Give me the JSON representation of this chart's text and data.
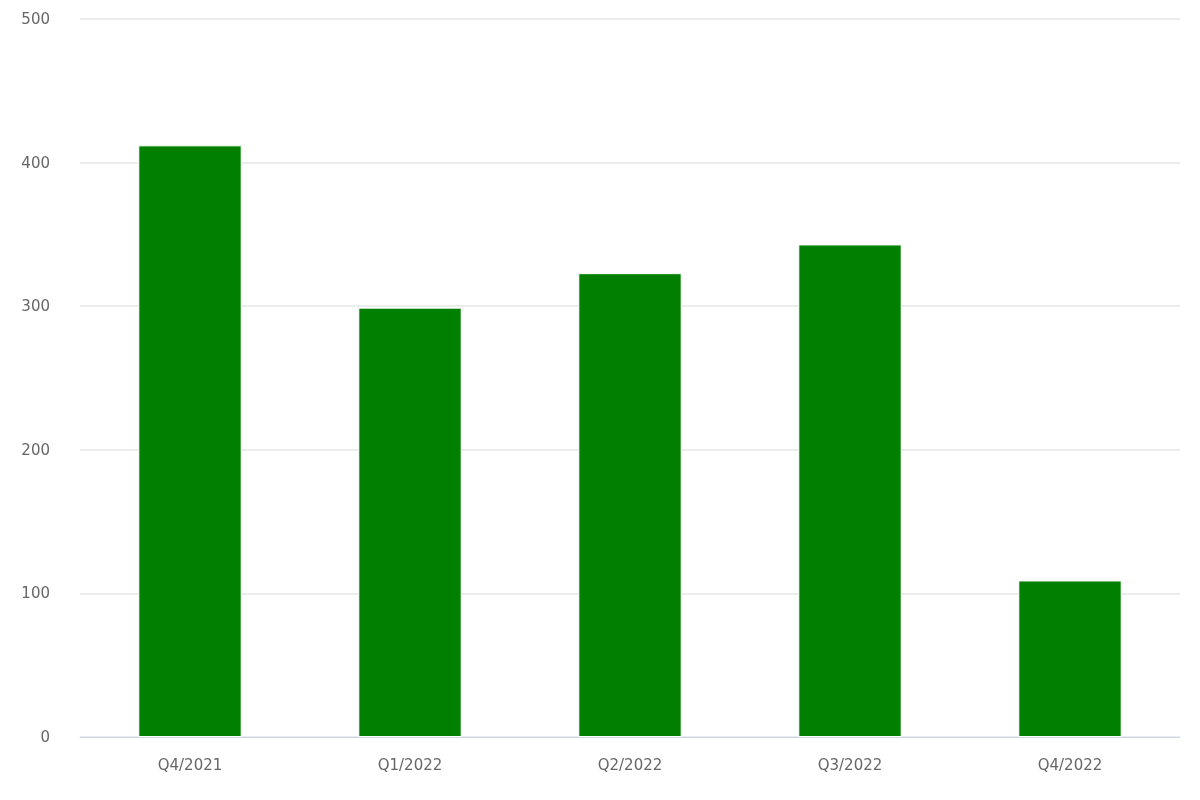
{
  "chart_data": {
    "type": "bar",
    "categories": [
      "Q4/2021",
      "Q1/2022",
      "Q2/2022",
      "Q3/2022",
      "Q4/2022"
    ],
    "values": [
      412,
      299,
      323,
      343,
      109
    ],
    "color": "#007f00",
    "ylim": [
      0,
      500
    ],
    "yticks": [
      0,
      100,
      200,
      300,
      400,
      500
    ],
    "grid": "y"
  }
}
